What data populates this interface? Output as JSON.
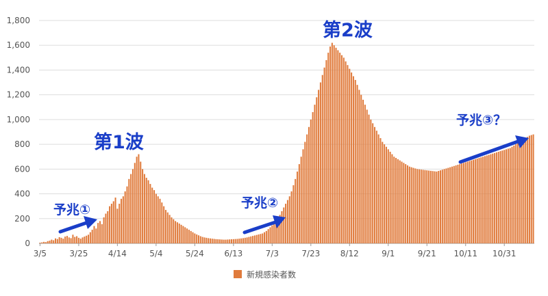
{
  "chart_data": {
    "type": "bar",
    "series_name": "新規感染者数",
    "ylim": [
      0,
      1800
    ],
    "yticks": [
      0,
      200,
      400,
      600,
      800,
      1000,
      1200,
      1400,
      1600,
      1800
    ],
    "ytick_labels": [
      "0",
      "200",
      "400",
      "600",
      "800",
      "1,000",
      "1,200",
      "1,400",
      "1,600",
      "1,800"
    ],
    "xtick_labels": [
      "3/5",
      "3/25",
      "4/14",
      "5/4",
      "5/24",
      "6/13",
      "7/3",
      "7/23",
      "8/12",
      "9/1",
      "9/21",
      "10/11",
      "10/31"
    ],
    "xtick_day_index": [
      0,
      20,
      40,
      60,
      80,
      100,
      120,
      140,
      160,
      180,
      200,
      220,
      240
    ],
    "grid": true,
    "legend_position": "bottom",
    "colors": {
      "bar": "#e07b3c",
      "grid": "#dddddd",
      "annotation": "#1a3ec8"
    },
    "values": [
      5,
      8,
      12,
      10,
      18,
      22,
      30,
      25,
      40,
      35,
      50,
      45,
      38,
      55,
      60,
      48,
      42,
      70,
      52,
      58,
      45,
      38,
      48,
      55,
      62,
      70,
      90,
      110,
      140,
      120,
      165,
      180,
      155,
      210,
      240,
      260,
      300,
      320,
      340,
      370,
      280,
      320,
      360,
      380,
      420,
      460,
      520,
      560,
      600,
      650,
      700,
      720,
      660,
      600,
      560,
      530,
      510,
      480,
      450,
      430,
      400,
      380,
      360,
      330,
      300,
      270,
      250,
      230,
      210,
      195,
      180,
      170,
      160,
      150,
      140,
      130,
      120,
      110,
      100,
      90,
      80,
      72,
      65,
      58,
      52,
      48,
      45,
      42,
      40,
      38,
      36,
      34,
      33,
      32,
      31,
      30,
      30,
      31,
      32,
      33,
      34,
      35,
      36,
      38,
      40,
      42,
      45,
      48,
      52,
      56,
      60,
      64,
      68,
      72,
      76,
      80,
      90,
      100,
      115,
      130,
      145,
      160,
      180,
      205,
      230,
      260,
      290,
      320,
      350,
      380,
      420,
      470,
      520,
      580,
      640,
      700,
      760,
      820,
      880,
      940,
      1000,
      1060,
      1120,
      1180,
      1240,
      1300,
      1360,
      1420,
      1480,
      1540,
      1590,
      1620,
      1600,
      1580,
      1560,
      1540,
      1520,
      1500,
      1470,
      1440,
      1410,
      1380,
      1350,
      1320,
      1280,
      1240,
      1200,
      1160,
      1120,
      1080,
      1040,
      1000,
      970,
      940,
      910,
      880,
      850,
      820,
      800,
      780,
      760,
      740,
      720,
      700,
      690,
      680,
      670,
      660,
      650,
      640,
      630,
      620,
      615,
      610,
      605,
      600,
      598,
      596,
      594,
      592,
      590,
      588,
      586,
      584,
      582,
      580,
      585,
      590,
      595,
      600,
      605,
      610,
      615,
      620,
      625,
      630,
      635,
      640,
      645,
      650,
      655,
      660,
      665,
      670,
      675,
      680,
      685,
      690,
      695,
      700,
      705,
      710,
      715,
      720,
      725,
      730,
      735,
      740,
      745,
      750,
      755,
      760,
      765,
      770,
      780,
      790,
      800,
      810,
      820,
      830,
      840,
      850,
      860,
      870,
      875,
      880
    ]
  },
  "annotations": {
    "wave1": "第1波",
    "wave2": "第2波",
    "sign1": "予兆①",
    "sign2": "予兆②",
    "sign3": "予兆③？"
  }
}
